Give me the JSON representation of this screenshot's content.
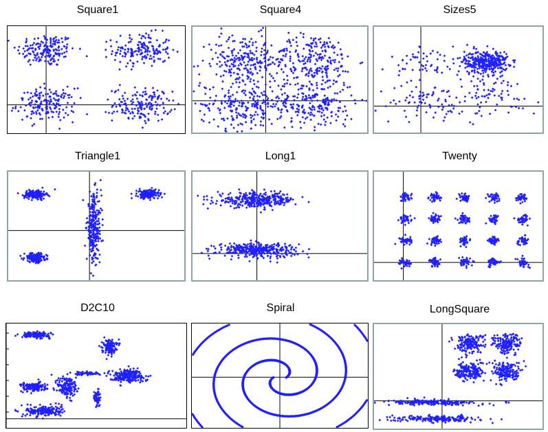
{
  "marker_color": "#1f1fff",
  "chart_data": [
    {
      "title": "Square1",
      "type": "scatter",
      "frame_color": "#000000",
      "xlim": [
        -1,
        3.6
      ],
      "ylim": [
        -1.3,
        3.6
      ],
      "axes_cross": [
        0,
        0
      ],
      "clusters": [
        {
          "shape": "gauss",
          "cx": 0,
          "cy": 2.5,
          "sx": 0.38,
          "sy": 0.38,
          "n": 170
        },
        {
          "shape": "gauss",
          "cx": 2.5,
          "cy": 2.5,
          "sx": 0.38,
          "sy": 0.38,
          "n": 170
        },
        {
          "shape": "gauss",
          "cx": 0,
          "cy": 0,
          "sx": 0.38,
          "sy": 0.38,
          "n": 170
        },
        {
          "shape": "gauss",
          "cx": 2.5,
          "cy": 0,
          "sx": 0.38,
          "sy": 0.38,
          "n": 170
        }
      ]
    },
    {
      "title": "Square4",
      "type": "scatter",
      "frame_color": "#8aa6a6",
      "xlim": [
        -1.8,
        4.4
      ],
      "ylim": [
        -1.6,
        4.4
      ],
      "axes_cross": [
        0.8,
        0.2
      ],
      "clusters": [
        {
          "shape": "gauss",
          "cx": 0,
          "cy": 2.5,
          "sx": 0.75,
          "sy": 0.75,
          "n": 230
        },
        {
          "shape": "gauss",
          "cx": 2.5,
          "cy": 2.5,
          "sx": 0.75,
          "sy": 0.75,
          "n": 230
        },
        {
          "shape": "gauss",
          "cx": 0,
          "cy": 0,
          "sx": 0.75,
          "sy": 0.75,
          "n": 230
        },
        {
          "shape": "gauss",
          "cx": 2.5,
          "cy": 0,
          "sx": 0.75,
          "sy": 0.75,
          "n": 230
        }
      ]
    },
    {
      "title": "Sizes5",
      "type": "scatter",
      "frame_color": "#8aa6a6",
      "xlim": [
        -1.2,
        4.2
      ],
      "ylim": [
        -1.2,
        3.6
      ],
      "axes_cross": [
        0.3,
        0
      ],
      "clusters": [
        {
          "shape": "gauss",
          "cx": 2.4,
          "cy": 2.0,
          "sx": 0.35,
          "sy": 0.25,
          "n": 330
        },
        {
          "shape": "gauss",
          "cx": 0.7,
          "cy": 2.0,
          "sx": 0.7,
          "sy": 0.4,
          "n": 70
        },
        {
          "shape": "gauss",
          "cx": 2.5,
          "cy": 0.5,
          "sx": 0.8,
          "sy": 0.5,
          "n": 90
        },
        {
          "shape": "gauss",
          "cx": 0.3,
          "cy": 0.2,
          "sx": 0.7,
          "sy": 0.4,
          "n": 70
        }
      ]
    },
    {
      "title": "Triangle1",
      "type": "scatter",
      "frame_color": "#8aa6a6",
      "xlim": [
        -3.6,
        4.2
      ],
      "ylim": [
        -2.2,
        2.6
      ],
      "axes_cross": [
        0,
        0
      ],
      "clusters": [
        {
          "shape": "gauss",
          "cx": -2.4,
          "cy": 1.6,
          "sx": 0.24,
          "sy": 0.1,
          "n": 170
        },
        {
          "shape": "gauss",
          "cx": 2.6,
          "cy": 1.6,
          "sx": 0.24,
          "sy": 0.1,
          "n": 170
        },
        {
          "shape": "gauss",
          "cx": -2.4,
          "cy": -1.2,
          "sx": 0.24,
          "sy": 0.1,
          "n": 170
        },
        {
          "shape": "gauss",
          "cx": 0.2,
          "cy": 0.1,
          "sx": 0.16,
          "sy": 0.75,
          "n": 260
        }
      ]
    },
    {
      "title": "Long1",
      "type": "scatter",
      "frame_color": "#8aa6a6",
      "xlim": [
        -4.2,
        7.2
      ],
      "ylim": [
        -1.5,
        4.6
      ],
      "axes_cross": [
        0,
        0
      ],
      "clusters": [
        {
          "shape": "gauss",
          "cx": 0,
          "cy": 3.0,
          "sx": 1.3,
          "sy": 0.2,
          "n": 330
        },
        {
          "shape": "gauss",
          "cx": 0,
          "cy": 0.2,
          "sx": 1.3,
          "sy": 0.2,
          "n": 330
        }
      ]
    },
    {
      "title": "Twenty",
      "type": "scatter",
      "frame_color": "#8aa6a6",
      "xlim": [
        -0.3,
        6.6
      ],
      "ylim": [
        -0.9,
        4.6
      ],
      "axes_cross": [
        0.9,
        0
      ],
      "grid": {
        "xs": [
          1,
          2.2,
          3.4,
          4.6,
          5.8
        ],
        "ys": [
          0,
          1.1,
          2.2,
          3.3
        ],
        "sx": 0.12,
        "sy": 0.11,
        "n": 40
      }
    },
    {
      "title": "D2C10",
      "type": "scatter",
      "frame_color": "#000000",
      "xlim": [
        -1.3,
        7.8
      ],
      "ylim": [
        -0.5,
        4.1
      ],
      "axes_cross": [
        -1.3,
        -0.1
      ],
      "clusters": [
        {
          "shape": "gauss",
          "cx": 0.2,
          "cy": 3.6,
          "sx": 0.35,
          "sy": 0.06,
          "n": 140
        },
        {
          "shape": "gauss",
          "cx": 0.1,
          "cy": 1.3,
          "sx": 0.32,
          "sy": 0.1,
          "n": 150
        },
        {
          "shape": "gauss",
          "cx": 0.6,
          "cy": 0.25,
          "sx": 0.45,
          "sy": 0.12,
          "n": 190
        },
        {
          "shape": "gauss",
          "cx": 1.8,
          "cy": 1.3,
          "sx": 0.25,
          "sy": 0.25,
          "n": 150
        },
        {
          "shape": "gauss",
          "cx": 2.8,
          "cy": 1.9,
          "sx": 0.35,
          "sy": 0.04,
          "n": 60
        },
        {
          "shape": "gauss",
          "cx": 3.3,
          "cy": 0.8,
          "sx": 0.07,
          "sy": 0.2,
          "n": 60
        },
        {
          "shape": "gauss",
          "cx": 3.9,
          "cy": 3.1,
          "sx": 0.18,
          "sy": 0.16,
          "n": 120
        },
        {
          "shape": "gauss",
          "cx": 4.8,
          "cy": 1.8,
          "sx": 0.45,
          "sy": 0.14,
          "n": 210
        }
      ]
    },
    {
      "title": "Spiral",
      "type": "scatter",
      "frame_color": "#000000",
      "xlim": [
        -4.2,
        4.2
      ],
      "ylim": [
        -3.2,
        3.4
      ],
      "axes_cross": [
        0,
        0
      ],
      "spiral": {
        "a0": 0.3,
        "b": 0.45,
        "turns": 3.1,
        "n": 900
      }
    },
    {
      "title": "LongSquare",
      "type": "scatter",
      "frame_color": "#8aa6a6",
      "xlim": [
        -4.2,
        6.2
      ],
      "ylim": [
        -1.8,
        4.6
      ],
      "axes_cross": [
        0,
        -0.1
      ],
      "clusters": [
        {
          "shape": "gauss",
          "cx": 1.7,
          "cy": 3.4,
          "sx": 0.45,
          "sy": 0.3,
          "n": 170
        },
        {
          "shape": "gauss",
          "cx": 4.0,
          "cy": 3.4,
          "sx": 0.45,
          "sy": 0.3,
          "n": 170
        },
        {
          "shape": "gauss",
          "cx": 1.7,
          "cy": 1.7,
          "sx": 0.45,
          "sy": 0.3,
          "n": 170
        },
        {
          "shape": "gauss",
          "cx": 4.0,
          "cy": 1.7,
          "sx": 0.45,
          "sy": 0.3,
          "n": 170
        },
        {
          "shape": "gauss",
          "cx": -0.5,
          "cy": -0.2,
          "sx": 1.4,
          "sy": 0.08,
          "n": 200
        },
        {
          "shape": "gauss",
          "cx": -0.4,
          "cy": -1.2,
          "sx": 1.3,
          "sy": 0.09,
          "n": 200
        }
      ]
    }
  ]
}
